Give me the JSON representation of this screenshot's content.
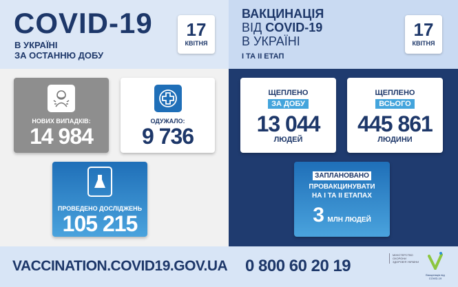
{
  "left_header": {
    "title": "COVID-19",
    "line1": "В УКРАЇНІ",
    "line2": "ЗА ОСТАННЮ ДОБУ",
    "date_day": "17",
    "date_month": "КВІТНЯ"
  },
  "right_header": {
    "line1": "ВАКЦИНАЦІЯ",
    "line2_prefix": "ВІД ",
    "line2_bold": "COVID-19",
    "line3": "В УКРАЇНІ",
    "line4": "І ТА ІІ ЕТАП",
    "date_day": "17",
    "date_month": "КВІТНЯ"
  },
  "stats": {
    "new_cases": {
      "label": "НОВИХ ВИПАДКІВ:",
      "value": "14 984",
      "icon": "person-coughing-icon"
    },
    "recovered": {
      "label": "ОДУЖАЛО:",
      "value": "9 736",
      "icon": "medical-cross-icon"
    },
    "tests": {
      "label": "ПРОВЕДЕНО ДОСЛІДЖЕНЬ",
      "value": "105 215",
      "icon": "flask-icon"
    }
  },
  "vaccination": {
    "daily": {
      "label": "ЩЕПЛЕНО",
      "tag": "ЗА ДОБУ",
      "value": "13 044",
      "unit": "ЛЮДЕЙ"
    },
    "total": {
      "label": "ЩЕПЛЕНО",
      "tag": "ВСЬОГО",
      "value": "445 861",
      "unit": "ЛЮДИНИ"
    },
    "planned": {
      "tag": "ЗАПЛАНОВАНО",
      "line1": "ПРОВАКЦИНУВАТИ",
      "line2": "НА І ТА ІІ ЕТАПАХ",
      "value": "3",
      "unit": "МЛН ЛЮДЕЙ"
    }
  },
  "footer": {
    "url": "VACCINATION.COVID19.GOV.UA",
    "phone": "0 800 60 20 19",
    "ministry": "МІНІСТЕРСТВО ОХОРОНИ ЗДОРОВ'Я УКРАЇНИ",
    "vacc_logo": "Вакцинація від COVID-19"
  },
  "colors": {
    "navy": "#1f3b6f",
    "accent_blue": "#43a4dc",
    "header_light": "#dce7f6"
  }
}
